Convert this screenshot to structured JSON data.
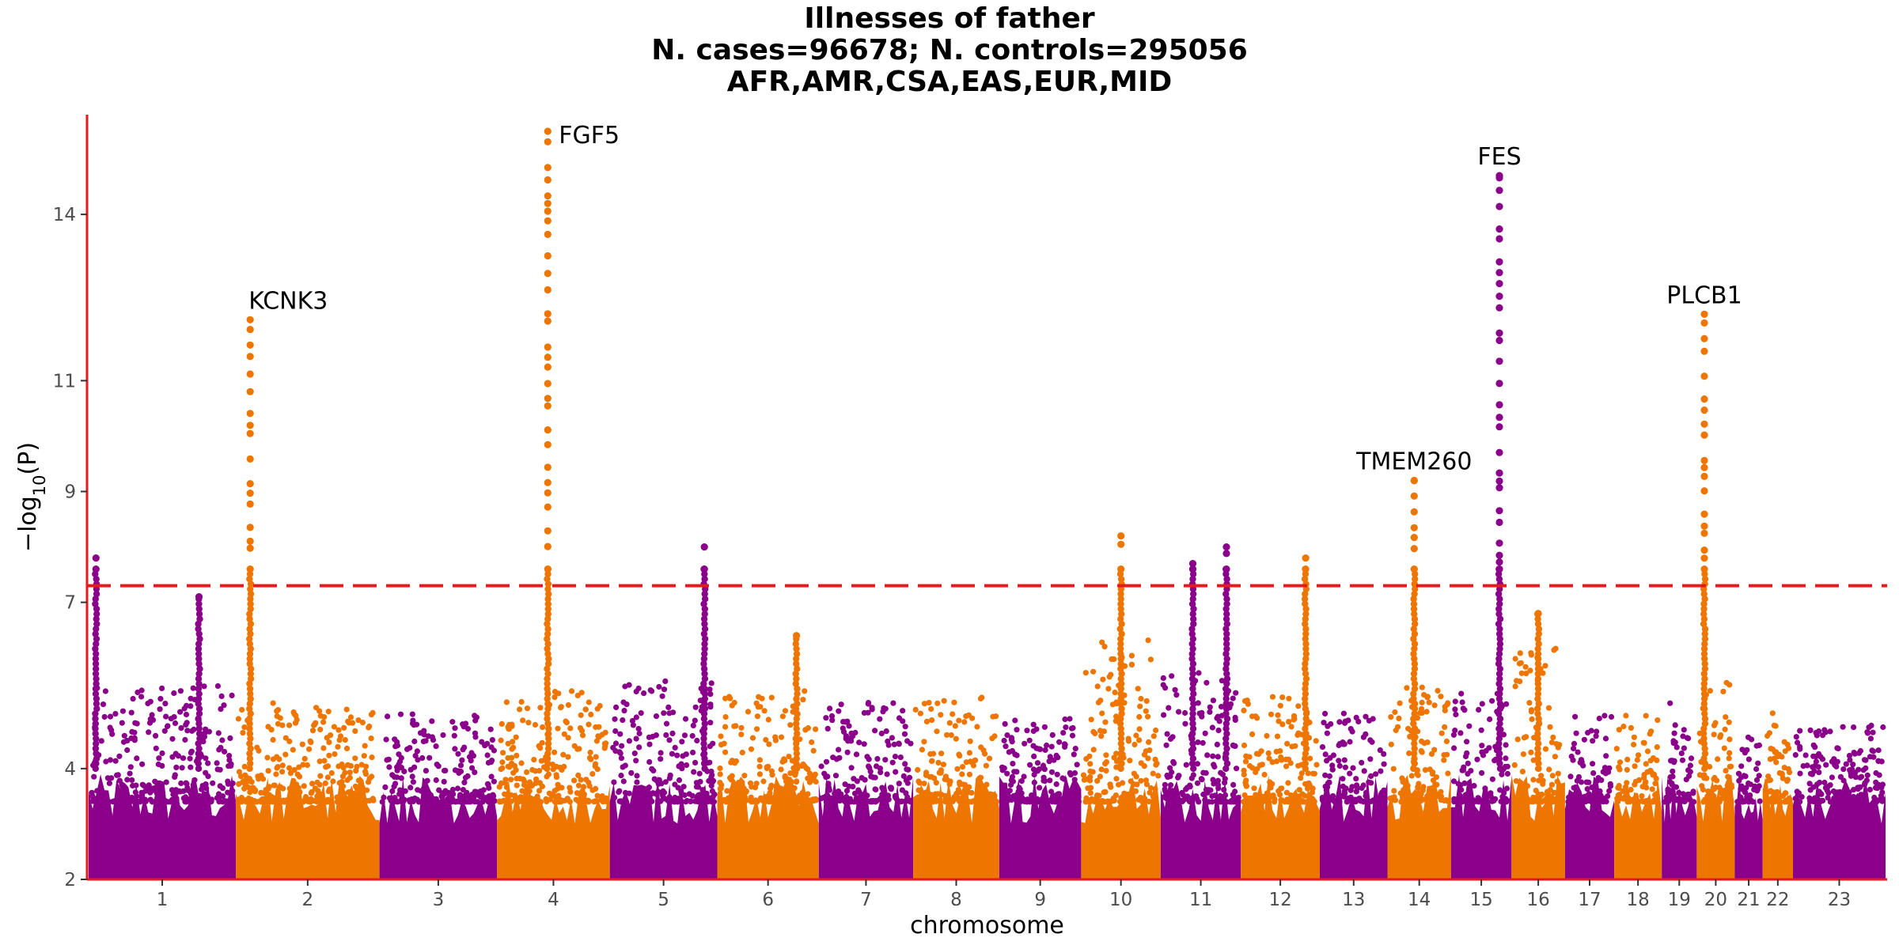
{
  "title": {
    "line1": "Illnesses of father",
    "line2": "N. cases=96678; N. controls=295056",
    "line3": "AFR,AMR,CSA,EAS,EUR,MID"
  },
  "colors": {
    "odd_chromosome": "#8B008B",
    "even_chromosome": "#EE7600",
    "significance_line": "#E41A1C",
    "axis": "#E41A1C"
  },
  "chart_data": {
    "type": "scatter",
    "subtype": "manhattan",
    "xlabel": "chromosome",
    "ylabel": "−log10(P)",
    "ylim": [
      2,
      15.8
    ],
    "yticks": [
      2,
      4,
      7,
      9,
      11,
      14
    ],
    "significance_threshold": 7.3,
    "chromosomes": [
      {
        "label": "1",
        "peak": 5.5
      },
      {
        "label": "2",
        "peak": 5.2
      },
      {
        "label": "3",
        "peak": 5.0
      },
      {
        "label": "4",
        "peak": 5.4
      },
      {
        "label": "5",
        "peak": 5.6
      },
      {
        "label": "6",
        "peak": 5.4
      },
      {
        "label": "7",
        "peak": 5.2
      },
      {
        "label": "8",
        "peak": 5.3
      },
      {
        "label": "9",
        "peak": 4.9
      },
      {
        "label": "10",
        "peak": 6.4
      },
      {
        "label": "11",
        "peak": 5.8
      },
      {
        "label": "12",
        "peak": 5.3
      },
      {
        "label": "13",
        "peak": 5.0
      },
      {
        "label": "14",
        "peak": 5.6
      },
      {
        "label": "15",
        "peak": 5.4
      },
      {
        "label": "16",
        "peak": 6.2
      },
      {
        "label": "17",
        "peak": 5.0
      },
      {
        "label": "18",
        "peak": 5.0
      },
      {
        "label": "19",
        "peak": 5.2
      },
      {
        "label": "20",
        "peak": 5.6
      },
      {
        "label": "21",
        "peak": 4.6
      },
      {
        "label": "22",
        "peak": 5.0
      },
      {
        "label": "23",
        "peak": 4.8
      }
    ],
    "peaks": [
      {
        "chrom": "1",
        "pos": 0.05,
        "top": 7.8
      },
      {
        "chrom": "1",
        "pos": 0.75,
        "top": 7.1
      },
      {
        "chrom": "2",
        "pos": 0.1,
        "top": 12.1,
        "gene": "KCNK3"
      },
      {
        "chrom": "4",
        "pos": 0.45,
        "top": 15.5,
        "gene": "FGF5"
      },
      {
        "chrom": "5",
        "pos": 0.88,
        "top": 8.0
      },
      {
        "chrom": "6",
        "pos": 0.78,
        "top": 6.4
      },
      {
        "chrom": "10",
        "pos": 0.5,
        "top": 8.2
      },
      {
        "chrom": "11",
        "pos": 0.4,
        "top": 7.7
      },
      {
        "chrom": "11",
        "pos": 0.82,
        "top": 8.0
      },
      {
        "chrom": "12",
        "pos": 0.82,
        "top": 7.8
      },
      {
        "chrom": "14",
        "pos": 0.42,
        "top": 9.2,
        "gene": "TMEM260"
      },
      {
        "chrom": "15",
        "pos": 0.8,
        "top": 14.7,
        "gene": "FES"
      },
      {
        "chrom": "16",
        "pos": 0.5,
        "top": 6.8
      },
      {
        "chrom": "20",
        "pos": 0.2,
        "top": 12.2,
        "gene": "PLCB1"
      }
    ]
  }
}
